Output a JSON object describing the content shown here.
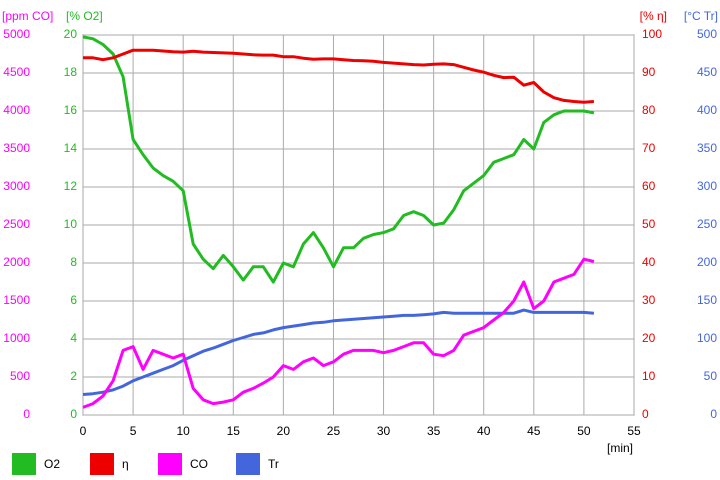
{
  "chart_data": {
    "type": "line",
    "xlabel": "[min]",
    "xlim": [
      0,
      55
    ],
    "xticks": [
      0,
      5,
      10,
      15,
      20,
      25,
      30,
      35,
      40,
      45,
      50,
      55
    ],
    "grid": true,
    "axes": [
      {
        "label": "[ppm CO]",
        "lim": [
          0,
          5000
        ],
        "ticks": [
          0,
          500,
          1000,
          1500,
          2000,
          2500,
          3000,
          3500,
          4000,
          4500,
          5000
        ],
        "color": "#ff00ff",
        "side": "left"
      },
      {
        "label": "[% O2]",
        "lim": [
          0,
          20
        ],
        "ticks": [
          0,
          2,
          4,
          6,
          8,
          10,
          12,
          14,
          16,
          18,
          20
        ],
        "color": "#22bb22",
        "side": "left"
      },
      {
        "label": "[% η]",
        "lim": [
          0,
          100
        ],
        "ticks": [
          0,
          10,
          20,
          30,
          40,
          50,
          60,
          70,
          80,
          90,
          100
        ],
        "color": "#ee0000",
        "side": "right"
      },
      {
        "label": "[°C Tr]",
        "lim": [
          0,
          500
        ],
        "ticks": [
          0,
          50,
          100,
          150,
          200,
          250,
          300,
          350,
          400,
          450,
          500
        ],
        "color": "#4466dd",
        "side": "right"
      }
    ],
    "x": [
      0,
      1,
      2,
      3,
      4,
      5,
      6,
      7,
      8,
      9,
      10,
      11,
      12,
      13,
      14,
      15,
      16,
      17,
      18,
      19,
      20,
      21,
      22,
      23,
      24,
      25,
      26,
      27,
      28,
      29,
      30,
      31,
      32,
      33,
      34,
      35,
      36,
      37,
      38,
      39,
      40,
      41,
      42,
      43,
      44,
      45,
      46,
      47,
      48,
      49,
      50,
      51
    ],
    "series": [
      {
        "name": "O2",
        "color": "#22bb22",
        "axis": 1,
        "values": [
          19.9,
          19.8,
          19.5,
          19.0,
          17.8,
          14.5,
          13.7,
          13.0,
          12.6,
          12.3,
          11.8,
          9.0,
          8.2,
          7.7,
          8.4,
          7.8,
          7.1,
          7.8,
          7.8,
          7.0,
          8.0,
          7.8,
          9.0,
          9.6,
          8.8,
          7.8,
          8.8,
          8.8,
          9.3,
          9.5,
          9.6,
          9.8,
          10.5,
          10.7,
          10.5,
          10.0,
          10.1,
          10.8,
          11.8,
          12.2,
          12.6,
          13.3,
          13.5,
          13.7,
          14.5,
          14.0,
          15.4,
          15.8,
          16.0,
          16.0,
          16.0,
          15.9
        ]
      },
      {
        "name": "η",
        "color": "#ee0000",
        "axis": 2,
        "values": [
          94,
          94,
          93.5,
          94,
          95,
          96,
          96,
          96,
          95.8,
          95.6,
          95.5,
          95.7,
          95.5,
          95.4,
          95.3,
          95.2,
          95,
          94.8,
          94.7,
          94.7,
          94.3,
          94.3,
          93.9,
          93.6,
          93.7,
          93.7,
          93.5,
          93.3,
          93.2,
          93.1,
          92.8,
          92.6,
          92.4,
          92.2,
          92.1,
          92.3,
          92.4,
          92.2,
          91.5,
          90.8,
          90.2,
          89.4,
          88.8,
          88.9,
          86.8,
          87.5,
          85,
          83.5,
          82.8,
          82.5,
          82.3,
          82.5
        ]
      },
      {
        "name": "CO",
        "color": "#ff00ff",
        "axis": 0,
        "values": [
          100,
          150,
          250,
          450,
          850,
          900,
          600,
          850,
          800,
          750,
          800,
          350,
          200,
          150,
          170,
          200,
          300,
          350,
          420,
          500,
          650,
          600,
          700,
          750,
          650,
          700,
          800,
          850,
          850,
          850,
          820,
          850,
          900,
          950,
          950,
          800,
          780,
          850,
          1050,
          1100,
          1150,
          1250,
          1350,
          1500,
          1750,
          1400,
          1500,
          1750,
          1800,
          1850,
          2050,
          2020
        ]
      },
      {
        "name": "Tr",
        "color": "#4466dd",
        "axis": 3,
        "values": [
          27,
          28,
          30,
          33,
          38,
          45,
          50,
          55,
          60,
          65,
          72,
          78,
          84,
          88,
          93,
          98,
          102,
          106,
          108,
          112,
          115,
          117,
          119,
          121,
          122,
          124,
          125,
          126,
          127,
          128,
          129,
          130,
          131,
          131,
          132,
          133,
          135,
          134,
          134,
          134,
          134,
          134,
          134,
          134,
          138,
          135,
          135,
          135,
          135,
          135,
          135,
          134
        ]
      }
    ]
  }
}
